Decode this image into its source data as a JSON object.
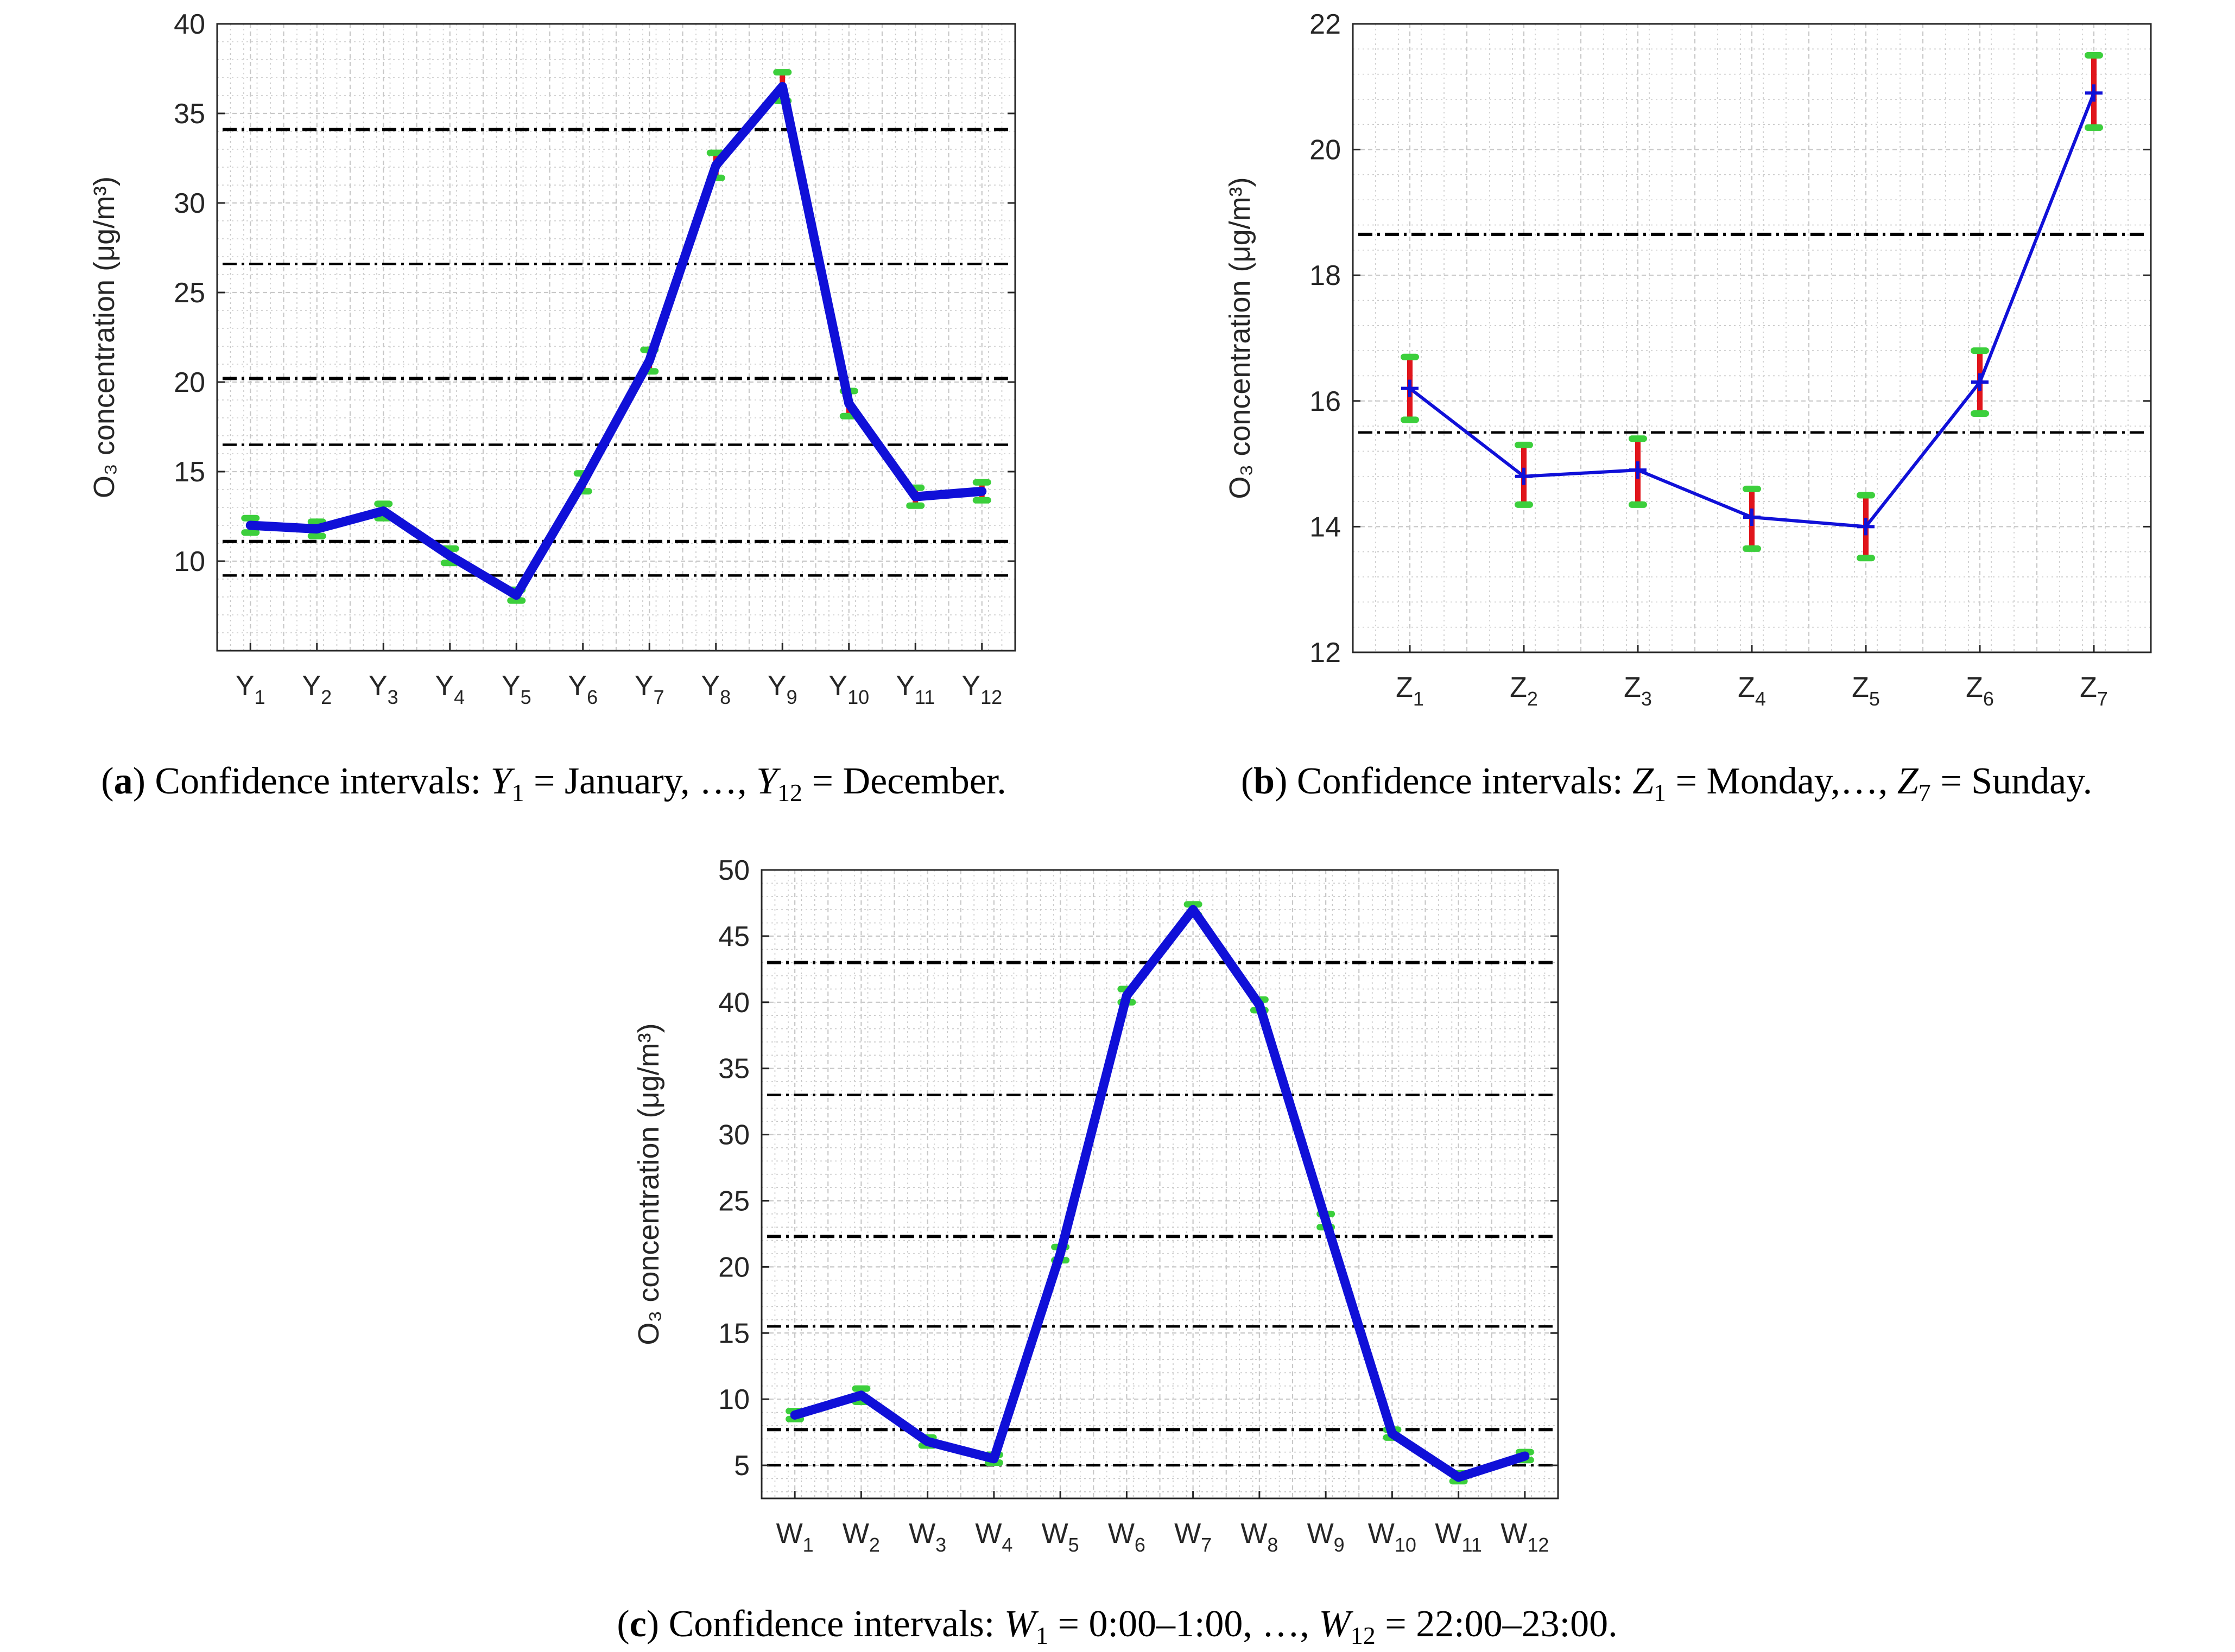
{
  "figure": {
    "panels": [
      {
        "caption": {
          "letter": "a",
          "prefix": "Confidence intervals: ",
          "first_var": "Y",
          "first_sub": "1",
          "first_value": "January, …, ",
          "last_var": "Y",
          "last_sub": "12",
          "last_value": "December."
        }
      },
      {
        "caption": {
          "letter": "b",
          "prefix": "Confidence intervals: ",
          "first_var": "Z",
          "first_sub": "1",
          "first_value": "Monday,…, ",
          "last_var": "Z",
          "last_sub": "7",
          "last_value": "Sunday."
        }
      },
      {
        "caption": {
          "letter": "c",
          "prefix": "Confidence intervals: ",
          "first_var": "W",
          "first_sub": "1",
          "first_value": "0:00–1:00, …, ",
          "last_var": "W",
          "last_sub": "12",
          "last_value": "22:00–23:00."
        }
      }
    ]
  },
  "colors": {
    "line": "#1010d8",
    "error_bar": "#e0151b",
    "bar_cap": "#3ccf3c",
    "reference_line": "#000000",
    "grid": "#c8c8c8",
    "axes": "#262626"
  },
  "chart_data": [
    {
      "type": "line",
      "ylabel": "O₃ concentration (μg/m³)",
      "categories": [
        "Y1",
        "Y2",
        "Y3",
        "Y4",
        "Y5",
        "Y6",
        "Y7",
        "Y8",
        "Y9",
        "Y10",
        "Y11",
        "Y12"
      ],
      "category_letter": "Y",
      "category_subs": [
        "1",
        "2",
        "3",
        "4",
        "5",
        "6",
        "7",
        "8",
        "9",
        "10",
        "11",
        "12"
      ],
      "values": [
        12.0,
        11.8,
        12.8,
        10.3,
        8.1,
        14.4,
        21.2,
        32.1,
        36.5,
        18.8,
        13.6,
        13.9
      ],
      "ci_lower": [
        11.6,
        11.4,
        12.4,
        9.9,
        7.8,
        13.9,
        20.6,
        31.4,
        35.7,
        18.1,
        13.1,
        13.4
      ],
      "ci_upper": [
        12.4,
        12.2,
        13.2,
        10.7,
        8.4,
        14.9,
        21.8,
        32.8,
        37.3,
        19.5,
        14.1,
        14.4
      ],
      "reference_lines": [
        34.1,
        26.6,
        20.2,
        16.5,
        11.1,
        9.2
      ],
      "ylim": [
        5,
        40
      ],
      "yticks": [
        10,
        15,
        20,
        25,
        30,
        35,
        40
      ],
      "grid": true,
      "minor_grid": true,
      "legend": "none"
    },
    {
      "type": "line",
      "ylabel": "O₃ concentration (μg/m³)",
      "categories": [
        "Z1",
        "Z2",
        "Z3",
        "Z4",
        "Z5",
        "Z6",
        "Z7"
      ],
      "category_letter": "Z",
      "category_subs": [
        "1",
        "2",
        "3",
        "4",
        "5",
        "6",
        "7"
      ],
      "values": [
        16.2,
        14.8,
        14.9,
        14.15,
        14.0,
        16.3,
        20.9
      ],
      "ci_lower": [
        15.7,
        14.35,
        14.35,
        13.65,
        13.5,
        15.8,
        20.35
      ],
      "ci_upper": [
        16.7,
        15.3,
        15.4,
        14.6,
        14.5,
        16.8,
        21.5
      ],
      "reference_lines": [
        18.65,
        15.5
      ],
      "ylim": [
        12,
        22
      ],
      "yticks": [
        12,
        14,
        16,
        18,
        20,
        22
      ],
      "grid": true,
      "minor_grid": true,
      "legend": "none"
    },
    {
      "type": "line",
      "ylabel": "O₃ concentration (μg/m³)",
      "categories": [
        "W1",
        "W2",
        "W3",
        "W4",
        "W5",
        "W6",
        "W7",
        "W8",
        "W9",
        "W10",
        "W11",
        "W12"
      ],
      "category_letter": "W",
      "category_subs": [
        "1",
        "2",
        "3",
        "4",
        "5",
        "6",
        "7",
        "8",
        "9",
        "10",
        "11",
        "12"
      ],
      "values": [
        8.8,
        10.3,
        6.8,
        5.5,
        21.0,
        40.5,
        47.0,
        39.8,
        23.5,
        7.4,
        4.1,
        5.7
      ],
      "ci_lower": [
        8.5,
        9.8,
        6.5,
        5.2,
        20.5,
        40.0,
        46.6,
        39.4,
        23.0,
        7.1,
        3.8,
        5.4
      ],
      "ci_upper": [
        9.1,
        10.8,
        7.1,
        5.8,
        21.5,
        41.0,
        47.4,
        40.2,
        24.0,
        7.7,
        4.4,
        6.0
      ],
      "reference_lines": [
        43.0,
        33.0,
        22.3,
        15.5,
        7.7,
        5.0
      ],
      "ylim": [
        2.5,
        50
      ],
      "yticks": [
        5,
        10,
        15,
        20,
        25,
        30,
        35,
        40,
        45,
        50
      ],
      "grid": true,
      "minor_grid": true,
      "legend": "none"
    }
  ]
}
